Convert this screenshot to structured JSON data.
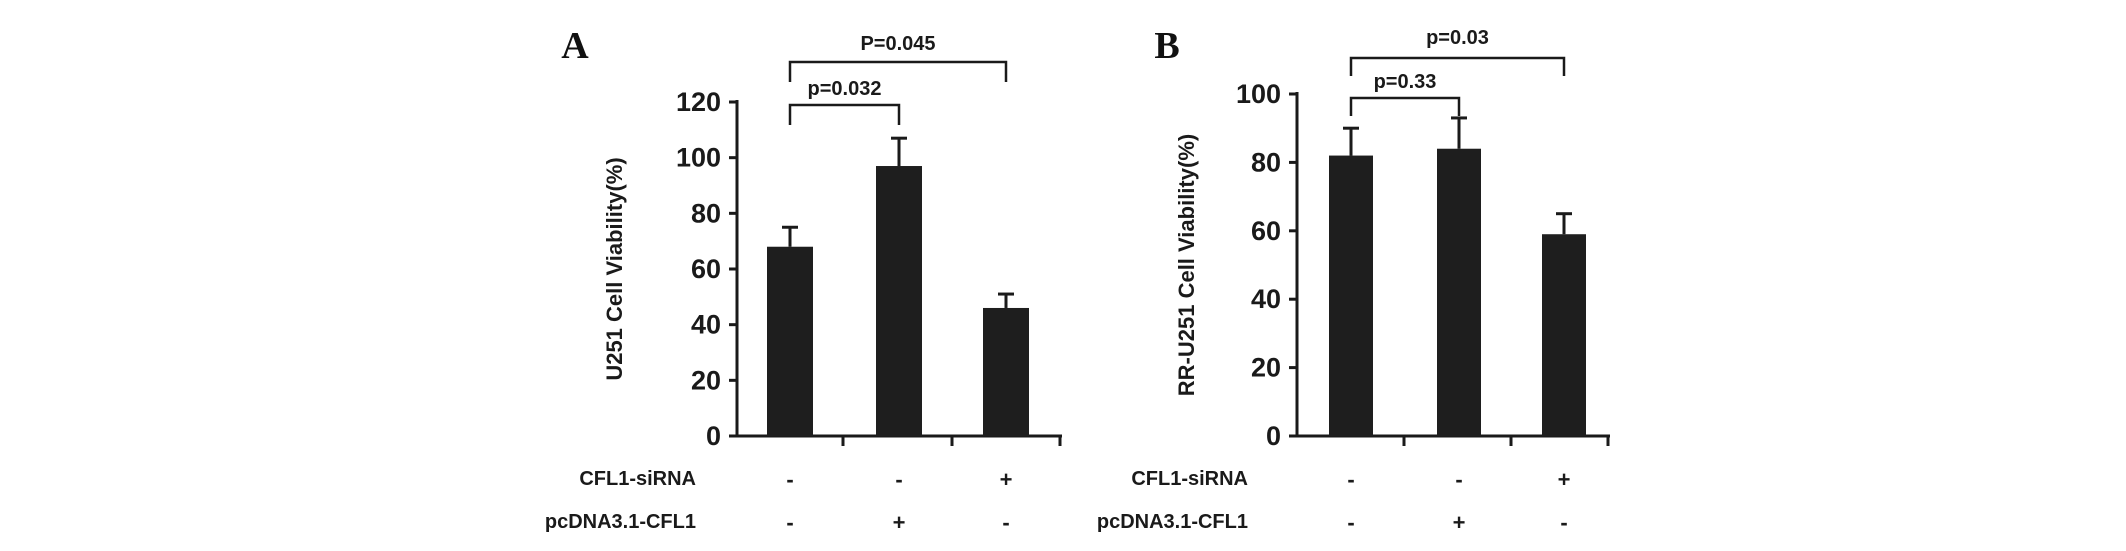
{
  "chart_data": [
    {
      "type": "bar",
      "panel": "A",
      "title": "",
      "xlabel": "",
      "ylabel": "U251 Cell Viability(%)",
      "ylim": [
        0,
        120
      ],
      "yticks": [
        0,
        20,
        40,
        60,
        80,
        100,
        120
      ],
      "categories": [
        "1",
        "2",
        "3"
      ],
      "values": [
        68,
        97,
        46
      ],
      "errors": [
        7,
        10,
        5
      ],
      "conditions": [
        {
          "label": "CFL1-siRNA",
          "signs": [
            "-",
            "-",
            "+"
          ]
        },
        {
          "label": "pcDNA3.1-CFL1",
          "signs": [
            "-",
            "+",
            "-"
          ]
        }
      ],
      "comparisons": [
        {
          "from": 0,
          "to": 1,
          "label": "p=0.032"
        },
        {
          "from": 0,
          "to": 2,
          "label": "P=0.045"
        }
      ],
      "color": "#1e1e1e"
    },
    {
      "type": "bar",
      "panel": "B",
      "title": "",
      "xlabel": "",
      "ylabel": "RR-U251 Cell Viability(%)",
      "ylim": [
        0,
        100
      ],
      "yticks": [
        0,
        20,
        40,
        60,
        80,
        100
      ],
      "categories": [
        "1",
        "2",
        "3"
      ],
      "values": [
        82,
        84,
        59
      ],
      "errors": [
        8,
        9,
        6
      ],
      "conditions": [
        {
          "label": "CFL1-siRNA",
          "signs": [
            "-",
            "-",
            "+"
          ]
        },
        {
          "label": "pcDNA3.1-CFL1",
          "signs": [
            "-",
            "+",
            "-"
          ]
        }
      ],
      "comparisons": [
        {
          "from": 0,
          "to": 1,
          "label": "p=0.33"
        },
        {
          "from": 0,
          "to": 2,
          "label": "p=0.03"
        }
      ],
      "color": "#1e1e1e"
    }
  ]
}
